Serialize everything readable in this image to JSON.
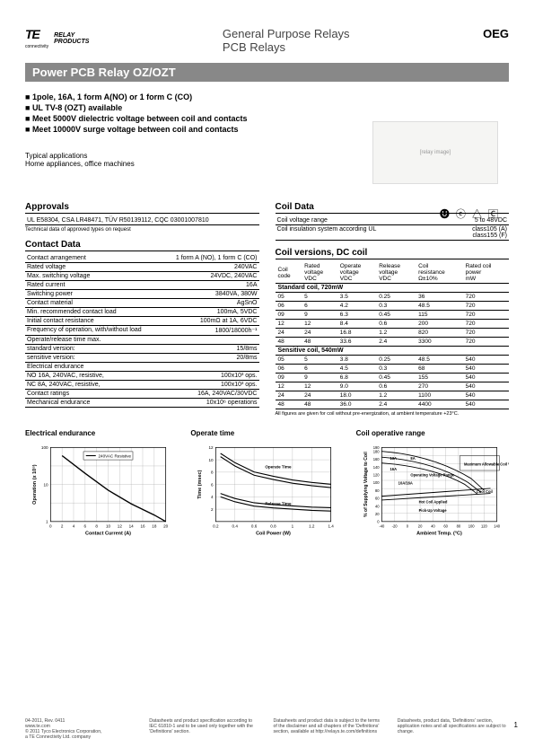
{
  "header": {
    "logo_main": "TE",
    "logo_sub": "connectivity",
    "relay_text": "RELAY\nPRODUCTS",
    "line1": "General Purpose Relays",
    "line2": "PCB Relays",
    "brand": "OEG",
    "title": "Power PCB Relay OZ/OZT"
  },
  "features": [
    "1pole, 16A, 1 form A(NO) or 1 form C (CO)",
    "UL TV-8 (OZT) available",
    "Meet 5000V dielectric voltage between coil and contacts",
    "Meet 10000V surge voltage between coil and contacts"
  ],
  "typical": {
    "heading": "Typical applications",
    "text": "Home appliances, office machines"
  },
  "cert_glyphs": "🅤 ⓒ △ 🄲",
  "approvals": {
    "title": "Approvals",
    "text": "UL E58304,   CSA LR48471, TÜV R50139112, CQC 03001007810",
    "note": "Technical data of approved types on request"
  },
  "contact_data": {
    "title": "Contact Data",
    "rows": [
      [
        "Contact arrangement",
        "1 form A (NO), 1 form C (CO)"
      ],
      [
        "Rated voltage",
        "240VAC"
      ],
      [
        "Max. switching voltage",
        "24VDC, 240VAC"
      ],
      [
        "Rated current",
        "16A"
      ],
      [
        "Switching power",
        "3840VA, 380W"
      ],
      [
        "Contact material",
        "AgSnO"
      ],
      [
        "Min. recommended contact load",
        "100mA, 5VDC"
      ],
      [
        "Initial contact resistance",
        "100mΩ at 1A, 6VDC"
      ],
      [
        "Frequency of operation, with/without load",
        "1800/18000h⁻¹"
      ],
      [
        "Operate/release time max.",
        ""
      ],
      [
        "    standard version:",
        "15/8ms"
      ],
      [
        "    sensitive version:",
        "20/8ms"
      ],
      [
        "Electrical endurance",
        ""
      ],
      [
        "    NO 16A, 240VAC, resistive,",
        "100x10³ ops."
      ],
      [
        "    NC 8A, 240VAC, resistive,",
        "100x10³ ops."
      ],
      [
        "Contact ratings",
        "16A, 240VAC/30VDC"
      ],
      [
        "Mechanical endurance",
        "10x10⁶ operations"
      ]
    ]
  },
  "coil_data": {
    "title": "Coil Data",
    "rows": [
      [
        "Coil voltage range",
        "5 to 48VDC"
      ],
      [
        "Coil insulation system according UL",
        "class105 (A)\nclass155 (F)"
      ]
    ]
  },
  "coil_versions": {
    "title": "Coil versions, DC coil",
    "headers": [
      "Coil\ncode",
      "Rated\nvoltage\nVDC",
      "Operate\nvoltage\nVDC",
      "Release\nvoltage\nVDC",
      "Coil\nresistance\nΩ±10%",
      "Rated coil\npower\nmW"
    ],
    "standard_label": "Standard coil, 720mW",
    "standard_rows": [
      [
        "05",
        "5",
        "3.5",
        "0.25",
        "36",
        "720"
      ],
      [
        "06",
        "6",
        "4.2",
        "0.3",
        "48.5",
        "720"
      ],
      [
        "09",
        "9",
        "6.3",
        "0.45",
        "115",
        "720"
      ],
      [
        "12",
        "12",
        "8.4",
        "0.6",
        "200",
        "720"
      ],
      [
        "24",
        "24",
        "16.8",
        "1.2",
        "820",
        "720"
      ],
      [
        "48",
        "48",
        "33.6",
        "2.4",
        "3300",
        "720"
      ]
    ],
    "sensitive_label": "Sensitive coil, 540mW",
    "sensitive_rows": [
      [
        "05",
        "5",
        "3.8",
        "0.25",
        "48.5",
        "540"
      ],
      [
        "06",
        "6",
        "4.5",
        "0.3",
        "68",
        "540"
      ],
      [
        "09",
        "9",
        "6.8",
        "0.45",
        "155",
        "540"
      ],
      [
        "12",
        "12",
        "9.0",
        "0.6",
        "270",
        "540"
      ],
      [
        "24",
        "24",
        "18.0",
        "1.2",
        "1100",
        "540"
      ],
      [
        "48",
        "48",
        "36.0",
        "2.4",
        "4400",
        "540"
      ]
    ],
    "note": "All figures are given for coil without pre-energization, at ambient temperature +23°C."
  },
  "charts": {
    "endurance": {
      "title": "Electrical endurance",
      "xlabel": "Contact Current (A)",
      "ylabel": "Operation (x 10⁵)",
      "xlim": [
        0,
        20
      ],
      "ylim_log": [
        1,
        100
      ],
      "xticks": [
        0,
        2,
        4,
        6,
        8,
        10,
        12,
        14,
        16,
        18,
        20
      ],
      "legend": "240VAC Resistive",
      "line_color": "#000",
      "grid_color": "#999",
      "points": [
        [
          2,
          60
        ],
        [
          6,
          20
        ],
        [
          10,
          7
        ],
        [
          14,
          3
        ],
        [
          18,
          1.5
        ],
        [
          20,
          1
        ]
      ]
    },
    "operate": {
      "title": "Operate time",
      "xlabel": "Coil Power (W)",
      "ylabel": "Time (msec)",
      "xlim": [
        0.2,
        1.4
      ],
      "ylim": [
        0,
        12
      ],
      "xticks": [
        0.2,
        0.4,
        0.6,
        0.8,
        1.0,
        1.2,
        1.4
      ],
      "yticks": [
        2,
        4,
        6,
        8,
        10,
        12
      ],
      "labels": [
        "Operate Time",
        "Release Time"
      ],
      "line_color": "#000",
      "operate_points": [
        [
          0.25,
          10.5
        ],
        [
          0.4,
          9
        ],
        [
          0.6,
          7.5
        ],
        [
          0.8,
          6.8
        ],
        [
          1.0,
          6.2
        ],
        [
          1.2,
          5.8
        ],
        [
          1.4,
          5.5
        ]
      ],
      "release_points": [
        [
          0.25,
          4
        ],
        [
          0.4,
          3.2
        ],
        [
          0.6,
          2.5
        ],
        [
          0.8,
          2.2
        ],
        [
          1.0,
          2
        ],
        [
          1.2,
          1.8
        ],
        [
          1.4,
          1.7
        ]
      ]
    },
    "range": {
      "title": "Coil operative range",
      "xlabel": "Ambient Temp. (°C)",
      "ylabel": "% of Supplying Voltage to Coil",
      "xlim": [
        -40,
        140
      ],
      "ylim": [
        0,
        190
      ],
      "xticks": [
        -40,
        -20,
        0,
        20,
        40,
        60,
        80,
        100,
        120,
        140
      ],
      "yticks": [
        0,
        20,
        40,
        60,
        80,
        100,
        120,
        140,
        160,
        180,
        190
      ],
      "region_labels": [
        "13A",
        "8A",
        "16A",
        "10A/16A",
        "Maximum Allowable Coil Voltage",
        "Operating Voltage Range",
        "Cool Coil",
        "Hot Coil Applied",
        "Pick-Up Voltage"
      ]
    }
  },
  "footer": {
    "col1": "04-2011, Rev. 0411\nwww.te.com\n© 2011 Tyco Electronics Corporation,\na TE Connectivity Ltd. company",
    "col2": "Datasheets and product specification according to IEC 61810-1 and to be used only together with the 'Definitions' section.",
    "col3": "Datasheets and product data is subject to the terms of the disclaimer and all chapters of the 'Definitions' section, available at http://relays.te.com/definitions",
    "col4": "Datasheets, product data, 'Definitions' section, application notes and all specifications are subject to change.",
    "page": "1"
  }
}
